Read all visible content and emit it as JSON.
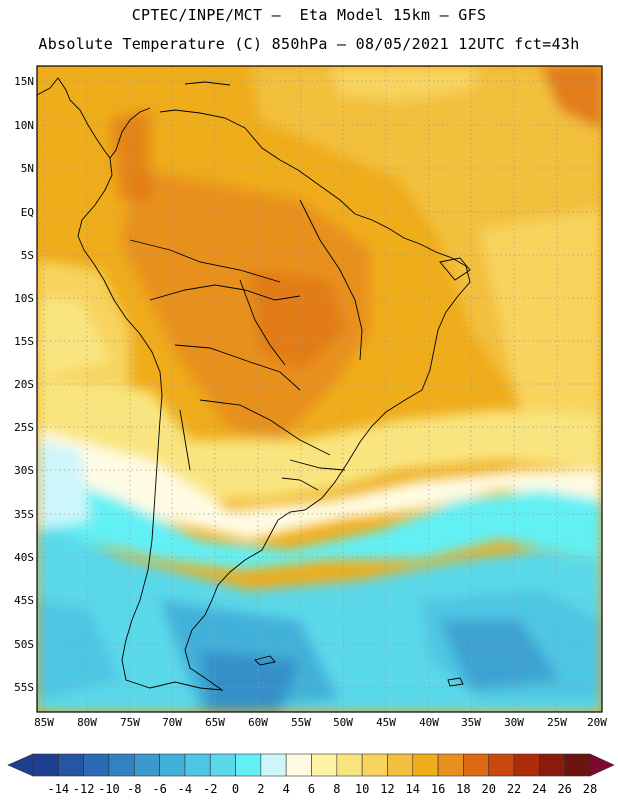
{
  "title_line1": "CPTEC/INPE/MCT –  Eta Model 15km – GFS",
  "title_line2": "Absolute Temperature (C) 850hPa – 08/05/2021 12UTC fct=43h",
  "lat_labels": [
    "15N",
    "10N",
    "5N",
    "EQ",
    "5S",
    "10S",
    "15S",
    "20S",
    "25S",
    "30S",
    "35S",
    "40S",
    "45S",
    "50S",
    "55S"
  ],
  "lon_labels": [
    "85W",
    "80W",
    "75W",
    "70W",
    "65W",
    "60W",
    "55W",
    "50W",
    "45W",
    "40W",
    "35W",
    "30W",
    "25W",
    "20W"
  ],
  "colorbar": {
    "labels": [
      "-14",
      "-12",
      "-10",
      "-8",
      "-6",
      "-4",
      "-2",
      "0",
      "2",
      "4",
      "6",
      "8",
      "10",
      "12",
      "14",
      "16",
      "18",
      "20",
      "22",
      "24",
      "26",
      "28"
    ],
    "colors": [
      "#1e3f8f",
      "#2456a3",
      "#2a6bb5",
      "#3182c2",
      "#3a99cd",
      "#42b1d9",
      "#4dc6e3",
      "#5ad9ea",
      "#62f0f5",
      "#cdf6fb",
      "#fffbe3",
      "#fdf5a5",
      "#f9e57f",
      "#f8d45f",
      "#f2c03e",
      "#efac1b",
      "#e8901d",
      "#dd6a13",
      "#c9480e",
      "#ad2c0b",
      "#8a1c0e",
      "#6b1410",
      "#7e0734"
    ]
  }
}
